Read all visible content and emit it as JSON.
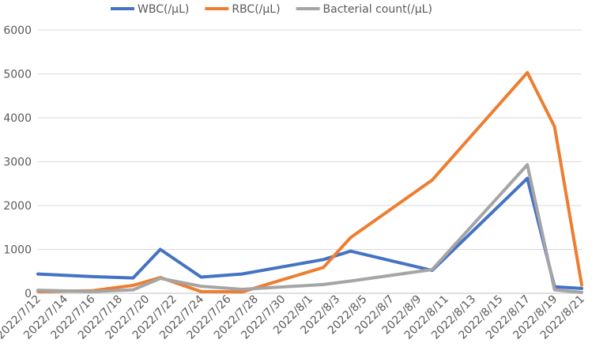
{
  "chart_data": {
    "type": "line",
    "title": "",
    "xlabel": "",
    "ylabel": "",
    "ylim": [
      0,
      6000
    ],
    "yticks": [
      0,
      1000,
      2000,
      3000,
      4000,
      5000,
      6000
    ],
    "x_axis_type": "date",
    "xlim": [
      "2022-07-12",
      "2022-08-21"
    ],
    "x_tick_labels": [
      "2022/7/12",
      "2022/7/14",
      "2022/7/16",
      "2022/7/18",
      "2022/7/20",
      "2022/7/22",
      "2022/7/24",
      "2022/7/26",
      "2022/7/28",
      "2022/7/30",
      "2022/8/1",
      "2022/8/3",
      "2022/8/5",
      "2022/8/7",
      "2022/8/9",
      "2022/8/11",
      "2022/8/13",
      "2022/8/15",
      "2022/8/17",
      "2022/8/19",
      "2022/8/21"
    ],
    "grid": "horizontal",
    "legend_position": "top",
    "series": [
      {
        "name": "WBC(/μL)",
        "color": "#4472C4",
        "points": [
          [
            "2022-07-12",
            440
          ],
          [
            "2022-07-16",
            380
          ],
          [
            "2022-07-19",
            350
          ],
          [
            "2022-07-21",
            1000
          ],
          [
            "2022-07-24",
            370
          ],
          [
            "2022-07-27",
            440
          ],
          [
            "2022-08-02",
            770
          ],
          [
            "2022-08-04",
            960
          ],
          [
            "2022-08-10",
            520
          ],
          [
            "2022-08-17",
            2620
          ],
          [
            "2022-08-19",
            150
          ],
          [
            "2022-08-21",
            110
          ]
        ]
      },
      {
        "name": "RBC(/μL)",
        "color": "#ED7D31",
        "points": [
          [
            "2022-07-12",
            40
          ],
          [
            "2022-07-16",
            60
          ],
          [
            "2022-07-19",
            180
          ],
          [
            "2022-07-21",
            360
          ],
          [
            "2022-07-24",
            40
          ],
          [
            "2022-07-27",
            30
          ],
          [
            "2022-08-02",
            590
          ],
          [
            "2022-08-04",
            1270
          ],
          [
            "2022-08-10",
            2580
          ],
          [
            "2022-08-17",
            5030
          ],
          [
            "2022-08-19",
            3800
          ],
          [
            "2022-08-21",
            190
          ]
        ]
      },
      {
        "name": "Bacterial count(/μL)",
        "color": "#A5A5A5",
        "points": [
          [
            "2022-07-12",
            70
          ],
          [
            "2022-07-16",
            40
          ],
          [
            "2022-07-19",
            80
          ],
          [
            "2022-07-21",
            340
          ],
          [
            "2022-07-24",
            160
          ],
          [
            "2022-07-27",
            90
          ],
          [
            "2022-08-02",
            200
          ],
          [
            "2022-08-04",
            280
          ],
          [
            "2022-08-10",
            540
          ],
          [
            "2022-08-17",
            2930
          ],
          [
            "2022-08-19",
            80
          ],
          [
            "2022-08-21",
            20
          ]
        ]
      }
    ]
  }
}
